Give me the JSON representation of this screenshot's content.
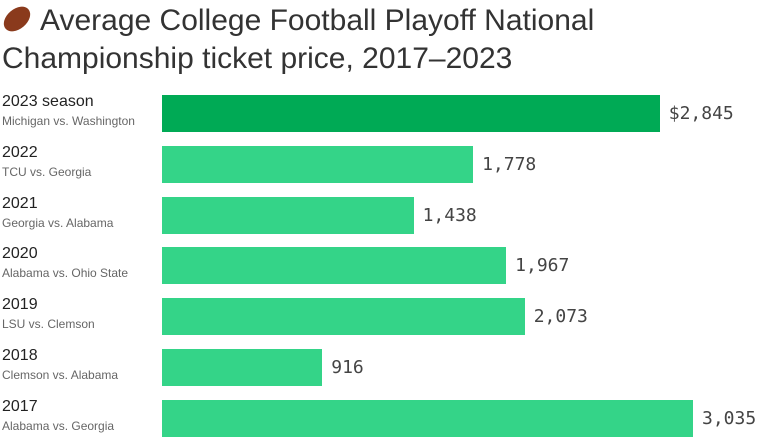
{
  "chart_data": {
    "type": "bar",
    "orientation": "horizontal",
    "title": "Average College Football Playoff National Championship ticket price, 2017–2023",
    "title_icon": "american-football-icon",
    "categories": [
      "2023 season",
      "2022",
      "2021",
      "2020",
      "2019",
      "2018",
      "2017"
    ],
    "subtitles": [
      "Michigan vs. Washington",
      "TCU vs. Georgia",
      "Georgia vs. Alabama",
      "Alabama vs. Ohio State",
      "LSU vs. Clemson",
      "Clemson vs. Alabama",
      "Alabama vs. Georgia"
    ],
    "values": [
      2845,
      1778,
      1438,
      1967,
      2073,
      916,
      3035
    ],
    "value_labels": [
      "$2,845",
      "1,778",
      "1,438",
      "1,967",
      "2,073",
      "916",
      "3,035"
    ],
    "colors": {
      "highlight": "#00aa55",
      "default": "#34d488"
    },
    "xlabel": "",
    "ylabel": "",
    "xlim": [
      0,
      3035
    ]
  }
}
